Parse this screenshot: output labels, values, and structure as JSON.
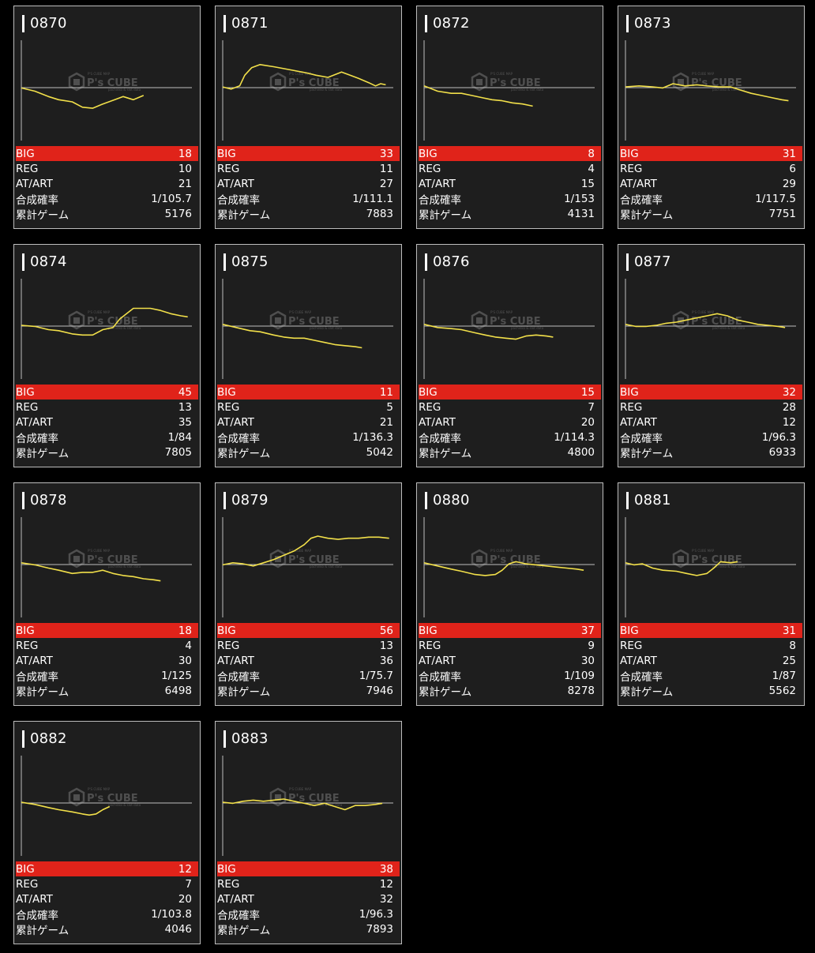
{
  "labels": {
    "big": "BIG",
    "reg": "REG",
    "at": "AT/ART",
    "prob": "合成確率",
    "games": "累計ゲーム"
  },
  "watermark": {
    "brand": "P's CUBE",
    "small_top": "P'S CUBE  MAP",
    "small_bottom": "pachinko & slot data"
  },
  "colors": {
    "big_row": "#e0231a",
    "graph_line": "#f2e04a",
    "card_bg": "#1e1e1e",
    "card_border": "#bdbdbd"
  },
  "cards": [
    {
      "id": "0870",
      "big": "18",
      "reg": "10",
      "at": "21",
      "prob": "1/105.7",
      "games": "5176",
      "line": [
        [
          0,
          0.47
        ],
        [
          0.08,
          0.5
        ],
        [
          0.16,
          0.55
        ],
        [
          0.22,
          0.58
        ],
        [
          0.3,
          0.6
        ],
        [
          0.36,
          0.65
        ],
        [
          0.42,
          0.66
        ],
        [
          0.48,
          0.62
        ],
        [
          0.55,
          0.58
        ],
        [
          0.6,
          0.55
        ],
        [
          0.66,
          0.58
        ],
        [
          0.72,
          0.54
        ]
      ]
    },
    {
      "id": "0871",
      "big": "33",
      "reg": "11",
      "at": "27",
      "prob": "1/111.1",
      "games": "7883",
      "line": [
        [
          0,
          0.46
        ],
        [
          0.05,
          0.48
        ],
        [
          0.1,
          0.45
        ],
        [
          0.13,
          0.35
        ],
        [
          0.17,
          0.28
        ],
        [
          0.22,
          0.25
        ],
        [
          0.3,
          0.27
        ],
        [
          0.4,
          0.3
        ],
        [
          0.5,
          0.33
        ],
        [
          0.55,
          0.35
        ],
        [
          0.62,
          0.37
        ],
        [
          0.7,
          0.32
        ],
        [
          0.75,
          0.35
        ],
        [
          0.8,
          0.38
        ],
        [
          0.86,
          0.42
        ],
        [
          0.9,
          0.45
        ],
        [
          0.93,
          0.43
        ],
        [
          0.96,
          0.44
        ]
      ]
    },
    {
      "id": "0872",
      "big": "8",
      "reg": "4",
      "at": "15",
      "prob": "1/153",
      "games": "4131",
      "line": [
        [
          0,
          0.45
        ],
        [
          0.08,
          0.5
        ],
        [
          0.16,
          0.52
        ],
        [
          0.22,
          0.52
        ],
        [
          0.28,
          0.54
        ],
        [
          0.34,
          0.56
        ],
        [
          0.4,
          0.58
        ],
        [
          0.46,
          0.59
        ],
        [
          0.52,
          0.61
        ],
        [
          0.58,
          0.62
        ],
        [
          0.64,
          0.64
        ]
      ]
    },
    {
      "id": "0873",
      "big": "31",
      "reg": "6",
      "at": "29",
      "prob": "1/117.5",
      "games": "7751",
      "line": [
        [
          0,
          0.46
        ],
        [
          0.08,
          0.45
        ],
        [
          0.16,
          0.46
        ],
        [
          0.22,
          0.47
        ],
        [
          0.28,
          0.43
        ],
        [
          0.35,
          0.45
        ],
        [
          0.42,
          0.44
        ],
        [
          0.48,
          0.45
        ],
        [
          0.55,
          0.46
        ],
        [
          0.62,
          0.46
        ],
        [
          0.68,
          0.49
        ],
        [
          0.74,
          0.52
        ],
        [
          0.8,
          0.54
        ],
        [
          0.86,
          0.56
        ],
        [
          0.92,
          0.58
        ],
        [
          0.96,
          0.59
        ]
      ]
    },
    {
      "id": "0874",
      "big": "45",
      "reg": "13",
      "at": "35",
      "prob": "1/84",
      "games": "7805",
      "line": [
        [
          0,
          0.46
        ],
        [
          0.08,
          0.47
        ],
        [
          0.16,
          0.5
        ],
        [
          0.22,
          0.51
        ],
        [
          0.3,
          0.54
        ],
        [
          0.36,
          0.55
        ],
        [
          0.42,
          0.55
        ],
        [
          0.48,
          0.5
        ],
        [
          0.54,
          0.48
        ],
        [
          0.58,
          0.4
        ],
        [
          0.62,
          0.35
        ],
        [
          0.66,
          0.3
        ],
        [
          0.7,
          0.3
        ],
        [
          0.76,
          0.3
        ],
        [
          0.82,
          0.32
        ],
        [
          0.88,
          0.35
        ],
        [
          0.94,
          0.37
        ],
        [
          0.98,
          0.38
        ]
      ]
    },
    {
      "id": "0875",
      "big": "11",
      "reg": "5",
      "at": "21",
      "prob": "1/136.3",
      "games": "5042",
      "line": [
        [
          0,
          0.45
        ],
        [
          0.08,
          0.48
        ],
        [
          0.16,
          0.51
        ],
        [
          0.22,
          0.52
        ],
        [
          0.3,
          0.55
        ],
        [
          0.36,
          0.57
        ],
        [
          0.42,
          0.58
        ],
        [
          0.48,
          0.58
        ],
        [
          0.54,
          0.6
        ],
        [
          0.6,
          0.62
        ],
        [
          0.66,
          0.64
        ],
        [
          0.72,
          0.65
        ],
        [
          0.78,
          0.66
        ],
        [
          0.82,
          0.67
        ]
      ]
    },
    {
      "id": "0876",
      "big": "15",
      "reg": "7",
      "at": "20",
      "prob": "1/114.3",
      "games": "4800",
      "line": [
        [
          0,
          0.45
        ],
        [
          0.08,
          0.48
        ],
        [
          0.16,
          0.49
        ],
        [
          0.22,
          0.5
        ],
        [
          0.3,
          0.53
        ],
        [
          0.36,
          0.55
        ],
        [
          0.42,
          0.57
        ],
        [
          0.48,
          0.58
        ],
        [
          0.54,
          0.59
        ],
        [
          0.6,
          0.56
        ],
        [
          0.66,
          0.55
        ],
        [
          0.72,
          0.56
        ],
        [
          0.76,
          0.57
        ]
      ]
    },
    {
      "id": "0877",
      "big": "32",
      "reg": "28",
      "at": "12",
      "prob": "1/96.3",
      "games": "6933",
      "line": [
        [
          0,
          0.45
        ],
        [
          0.06,
          0.47
        ],
        [
          0.12,
          0.47
        ],
        [
          0.18,
          0.46
        ],
        [
          0.24,
          0.44
        ],
        [
          0.3,
          0.43
        ],
        [
          0.36,
          0.41
        ],
        [
          0.42,
          0.39
        ],
        [
          0.48,
          0.37
        ],
        [
          0.54,
          0.35
        ],
        [
          0.6,
          0.37
        ],
        [
          0.66,
          0.41
        ],
        [
          0.72,
          0.43
        ],
        [
          0.78,
          0.45
        ],
        [
          0.84,
          0.46
        ],
        [
          0.9,
          0.47
        ],
        [
          0.94,
          0.48
        ]
      ]
    },
    {
      "id": "0878",
      "big": "18",
      "reg": "4",
      "at": "30",
      "prob": "1/125",
      "games": "6498",
      "line": [
        [
          0,
          0.45
        ],
        [
          0.08,
          0.47
        ],
        [
          0.16,
          0.5
        ],
        [
          0.22,
          0.52
        ],
        [
          0.3,
          0.55
        ],
        [
          0.36,
          0.54
        ],
        [
          0.42,
          0.54
        ],
        [
          0.48,
          0.52
        ],
        [
          0.54,
          0.55
        ],
        [
          0.6,
          0.57
        ],
        [
          0.66,
          0.58
        ],
        [
          0.72,
          0.6
        ],
        [
          0.78,
          0.61
        ],
        [
          0.82,
          0.62
        ]
      ]
    },
    {
      "id": "0879",
      "big": "56",
      "reg": "13",
      "at": "36",
      "prob": "1/75.7",
      "games": "7946",
      "line": [
        [
          0,
          0.47
        ],
        [
          0.06,
          0.45
        ],
        [
          0.12,
          0.46
        ],
        [
          0.18,
          0.48
        ],
        [
          0.24,
          0.45
        ],
        [
          0.3,
          0.42
        ],
        [
          0.36,
          0.38
        ],
        [
          0.42,
          0.34
        ],
        [
          0.48,
          0.28
        ],
        [
          0.52,
          0.22
        ],
        [
          0.56,
          0.2
        ],
        [
          0.62,
          0.22
        ],
        [
          0.68,
          0.23
        ],
        [
          0.74,
          0.22
        ],
        [
          0.8,
          0.22
        ],
        [
          0.86,
          0.21
        ],
        [
          0.92,
          0.21
        ],
        [
          0.98,
          0.22
        ]
      ]
    },
    {
      "id": "0880",
      "big": "37",
      "reg": "9",
      "at": "30",
      "prob": "1/109",
      "games": "8278",
      "line": [
        [
          0,
          0.45
        ],
        [
          0.08,
          0.48
        ],
        [
          0.16,
          0.51
        ],
        [
          0.22,
          0.53
        ],
        [
          0.3,
          0.56
        ],
        [
          0.36,
          0.57
        ],
        [
          0.42,
          0.56
        ],
        [
          0.46,
          0.52
        ],
        [
          0.5,
          0.46
        ],
        [
          0.54,
          0.44
        ],
        [
          0.6,
          0.46
        ],
        [
          0.66,
          0.47
        ],
        [
          0.72,
          0.48
        ],
        [
          0.78,
          0.49
        ],
        [
          0.84,
          0.5
        ],
        [
          0.9,
          0.51
        ],
        [
          0.94,
          0.52
        ]
      ]
    },
    {
      "id": "0881",
      "big": "31",
      "reg": "8",
      "at": "25",
      "prob": "1/87",
      "games": "5562",
      "line": [
        [
          0,
          0.45
        ],
        [
          0.05,
          0.47
        ],
        [
          0.1,
          0.46
        ],
        [
          0.16,
          0.5
        ],
        [
          0.22,
          0.52
        ],
        [
          0.3,
          0.53
        ],
        [
          0.36,
          0.55
        ],
        [
          0.42,
          0.57
        ],
        [
          0.48,
          0.55
        ],
        [
          0.52,
          0.5
        ],
        [
          0.56,
          0.44
        ],
        [
          0.62,
          0.45
        ],
        [
          0.66,
          0.44
        ]
      ]
    },
    {
      "id": "0882",
      "big": "12",
      "reg": "7",
      "at": "20",
      "prob": "1/103.8",
      "games": "4046",
      "line": [
        [
          0,
          0.46
        ],
        [
          0.08,
          0.48
        ],
        [
          0.16,
          0.51
        ],
        [
          0.22,
          0.53
        ],
        [
          0.3,
          0.55
        ],
        [
          0.36,
          0.57
        ],
        [
          0.4,
          0.58
        ],
        [
          0.44,
          0.57
        ],
        [
          0.48,
          0.53
        ],
        [
          0.52,
          0.5
        ]
      ]
    },
    {
      "id": "0883",
      "big": "38",
      "reg": "12",
      "at": "32",
      "prob": "1/96.3",
      "games": "7893",
      "line": [
        [
          0,
          0.46
        ],
        [
          0.06,
          0.47
        ],
        [
          0.12,
          0.45
        ],
        [
          0.18,
          0.44
        ],
        [
          0.24,
          0.45
        ],
        [
          0.3,
          0.44
        ],
        [
          0.36,
          0.43
        ],
        [
          0.42,
          0.45
        ],
        [
          0.48,
          0.47
        ],
        [
          0.54,
          0.49
        ],
        [
          0.6,
          0.47
        ],
        [
          0.66,
          0.5
        ],
        [
          0.72,
          0.53
        ],
        [
          0.78,
          0.49
        ],
        [
          0.84,
          0.49
        ],
        [
          0.9,
          0.48
        ],
        [
          0.94,
          0.47
        ]
      ]
    }
  ]
}
